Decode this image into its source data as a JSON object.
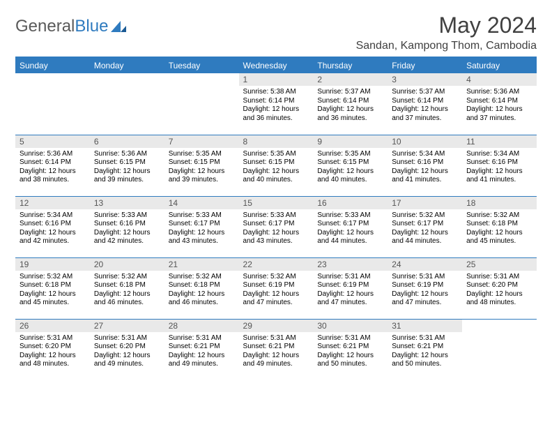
{
  "logo": {
    "text1": "General",
    "text2": "Blue"
  },
  "title": "May 2024",
  "location": "Sandan, Kampong Thom, Cambodia",
  "colors": {
    "brand_blue": "#2f7bbf",
    "header_text": "#404040",
    "grey_row": "#e9e9e9",
    "body_text": "#000000",
    "logo_grey": "#5a5a5a"
  },
  "weekdays": [
    "Sunday",
    "Monday",
    "Tuesday",
    "Wednesday",
    "Thursday",
    "Friday",
    "Saturday"
  ],
  "weeks": [
    [
      null,
      null,
      null,
      {
        "d": "1",
        "sr": "5:38 AM",
        "ss": "6:14 PM",
        "dl": "12 hours and 36 minutes."
      },
      {
        "d": "2",
        "sr": "5:37 AM",
        "ss": "6:14 PM",
        "dl": "12 hours and 36 minutes."
      },
      {
        "d": "3",
        "sr": "5:37 AM",
        "ss": "6:14 PM",
        "dl": "12 hours and 37 minutes."
      },
      {
        "d": "4",
        "sr": "5:36 AM",
        "ss": "6:14 PM",
        "dl": "12 hours and 37 minutes."
      }
    ],
    [
      {
        "d": "5",
        "sr": "5:36 AM",
        "ss": "6:14 PM",
        "dl": "12 hours and 38 minutes."
      },
      {
        "d": "6",
        "sr": "5:36 AM",
        "ss": "6:15 PM",
        "dl": "12 hours and 39 minutes."
      },
      {
        "d": "7",
        "sr": "5:35 AM",
        "ss": "6:15 PM",
        "dl": "12 hours and 39 minutes."
      },
      {
        "d": "8",
        "sr": "5:35 AM",
        "ss": "6:15 PM",
        "dl": "12 hours and 40 minutes."
      },
      {
        "d": "9",
        "sr": "5:35 AM",
        "ss": "6:15 PM",
        "dl": "12 hours and 40 minutes."
      },
      {
        "d": "10",
        "sr": "5:34 AM",
        "ss": "6:16 PM",
        "dl": "12 hours and 41 minutes."
      },
      {
        "d": "11",
        "sr": "5:34 AM",
        "ss": "6:16 PM",
        "dl": "12 hours and 41 minutes."
      }
    ],
    [
      {
        "d": "12",
        "sr": "5:34 AM",
        "ss": "6:16 PM",
        "dl": "12 hours and 42 minutes."
      },
      {
        "d": "13",
        "sr": "5:33 AM",
        "ss": "6:16 PM",
        "dl": "12 hours and 42 minutes."
      },
      {
        "d": "14",
        "sr": "5:33 AM",
        "ss": "6:17 PM",
        "dl": "12 hours and 43 minutes."
      },
      {
        "d": "15",
        "sr": "5:33 AM",
        "ss": "6:17 PM",
        "dl": "12 hours and 43 minutes."
      },
      {
        "d": "16",
        "sr": "5:33 AM",
        "ss": "6:17 PM",
        "dl": "12 hours and 44 minutes."
      },
      {
        "d": "17",
        "sr": "5:32 AM",
        "ss": "6:17 PM",
        "dl": "12 hours and 44 minutes."
      },
      {
        "d": "18",
        "sr": "5:32 AM",
        "ss": "6:18 PM",
        "dl": "12 hours and 45 minutes."
      }
    ],
    [
      {
        "d": "19",
        "sr": "5:32 AM",
        "ss": "6:18 PM",
        "dl": "12 hours and 45 minutes."
      },
      {
        "d": "20",
        "sr": "5:32 AM",
        "ss": "6:18 PM",
        "dl": "12 hours and 46 minutes."
      },
      {
        "d": "21",
        "sr": "5:32 AM",
        "ss": "6:18 PM",
        "dl": "12 hours and 46 minutes."
      },
      {
        "d": "22",
        "sr": "5:32 AM",
        "ss": "6:19 PM",
        "dl": "12 hours and 47 minutes."
      },
      {
        "d": "23",
        "sr": "5:31 AM",
        "ss": "6:19 PM",
        "dl": "12 hours and 47 minutes."
      },
      {
        "d": "24",
        "sr": "5:31 AM",
        "ss": "6:19 PM",
        "dl": "12 hours and 47 minutes."
      },
      {
        "d": "25",
        "sr": "5:31 AM",
        "ss": "6:20 PM",
        "dl": "12 hours and 48 minutes."
      }
    ],
    [
      {
        "d": "26",
        "sr": "5:31 AM",
        "ss": "6:20 PM",
        "dl": "12 hours and 48 minutes."
      },
      {
        "d": "27",
        "sr": "5:31 AM",
        "ss": "6:20 PM",
        "dl": "12 hours and 49 minutes."
      },
      {
        "d": "28",
        "sr": "5:31 AM",
        "ss": "6:21 PM",
        "dl": "12 hours and 49 minutes."
      },
      {
        "d": "29",
        "sr": "5:31 AM",
        "ss": "6:21 PM",
        "dl": "12 hours and 49 minutes."
      },
      {
        "d": "30",
        "sr": "5:31 AM",
        "ss": "6:21 PM",
        "dl": "12 hours and 50 minutes."
      },
      {
        "d": "31",
        "sr": "5:31 AM",
        "ss": "6:21 PM",
        "dl": "12 hours and 50 minutes."
      },
      null
    ]
  ],
  "labels": {
    "sunrise": "Sunrise:",
    "sunset": "Sunset:",
    "daylight": "Daylight:"
  }
}
